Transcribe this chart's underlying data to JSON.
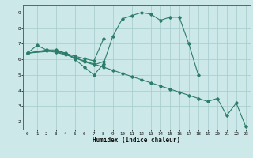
{
  "xlabel": "Humidex (Indice chaleur)",
  "line_color": "#2d7d6b",
  "bg_color": "#cce8e8",
  "grid_color": "#aacece",
  "xlim": [
    -0.5,
    23.5
  ],
  "ylim": [
    1.5,
    9.5
  ],
  "xticks": [
    0,
    1,
    2,
    3,
    4,
    5,
    6,
    7,
    8,
    9,
    10,
    11,
    12,
    13,
    14,
    15,
    16,
    17,
    18,
    19,
    20,
    21,
    22,
    23
  ],
  "yticks": [
    2,
    3,
    4,
    5,
    6,
    7,
    8,
    9
  ],
  "line1_x": [
    0,
    1,
    2,
    3,
    4,
    5,
    6,
    7,
    8,
    9,
    10,
    11,
    12,
    13,
    14,
    15,
    16,
    17,
    18
  ],
  "line1_y": [
    6.4,
    6.9,
    6.6,
    6.6,
    6.4,
    6.0,
    5.5,
    5.0,
    5.7,
    7.5,
    8.6,
    8.8,
    9.0,
    8.9,
    8.5,
    8.7,
    8.7,
    7.0,
    5.0
  ],
  "line2_x": [
    0,
    2,
    3,
    4,
    5,
    6,
    7,
    8,
    9,
    10,
    11,
    12,
    13,
    14,
    15,
    16,
    17,
    18,
    19,
    20,
    21,
    22,
    23
  ],
  "line2_y": [
    6.4,
    6.55,
    6.45,
    6.3,
    6.1,
    5.9,
    5.7,
    5.5,
    5.3,
    5.1,
    4.9,
    4.7,
    4.5,
    4.3,
    4.1,
    3.9,
    3.7,
    3.5,
    3.3,
    3.5,
    2.4,
    3.2,
    1.7
  ],
  "line3_x": [
    0,
    2,
    3,
    4,
    5,
    6,
    7,
    8
  ],
  "line3_y": [
    6.4,
    6.6,
    6.5,
    6.35,
    6.1,
    5.85,
    5.65,
    5.85
  ],
  "line4_x": [
    0,
    3,
    4,
    5,
    6,
    7,
    8
  ],
  "line4_y": [
    6.4,
    6.55,
    6.4,
    6.2,
    6.05,
    5.9,
    7.3
  ]
}
